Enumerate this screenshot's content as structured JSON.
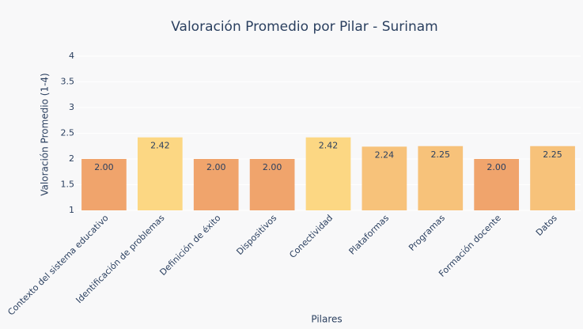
{
  "chart_data": {
    "type": "bar",
    "title": "Valoración Promedio por Pilar - Surinam",
    "x_label": "Pilares",
    "y_label": "Valoración Promedio (1-4)",
    "categories": [
      "Contexto del sistema educativo",
      "Identificación de problemas",
      "Definición de éxito",
      "Dispositivos",
      "Conectividad",
      "Plataformas",
      "Programas",
      "Formación docente",
      "Datos"
    ],
    "values": [
      2,
      2.42,
      2,
      2,
      2.42,
      2.24,
      2.25,
      2,
      2.25
    ],
    "value_labels": [
      "2.00",
      "2.42",
      "2.00",
      "2.00",
      "2.42",
      "2.24",
      "2.25",
      "2.00",
      "2.25"
    ],
    "colors": [
      "#f0a46c",
      "#fcd783",
      "#f0a46c",
      "#f0a46c",
      "#fcd783",
      "#f7c27a",
      "#f7c27a",
      "#f0a46c",
      "#f7c27a"
    ],
    "ylim": [
      1,
      4
    ],
    "yticks": [
      1,
      1.5,
      2,
      2.5,
      3,
      3.5,
      4
    ],
    "grid": true
  }
}
